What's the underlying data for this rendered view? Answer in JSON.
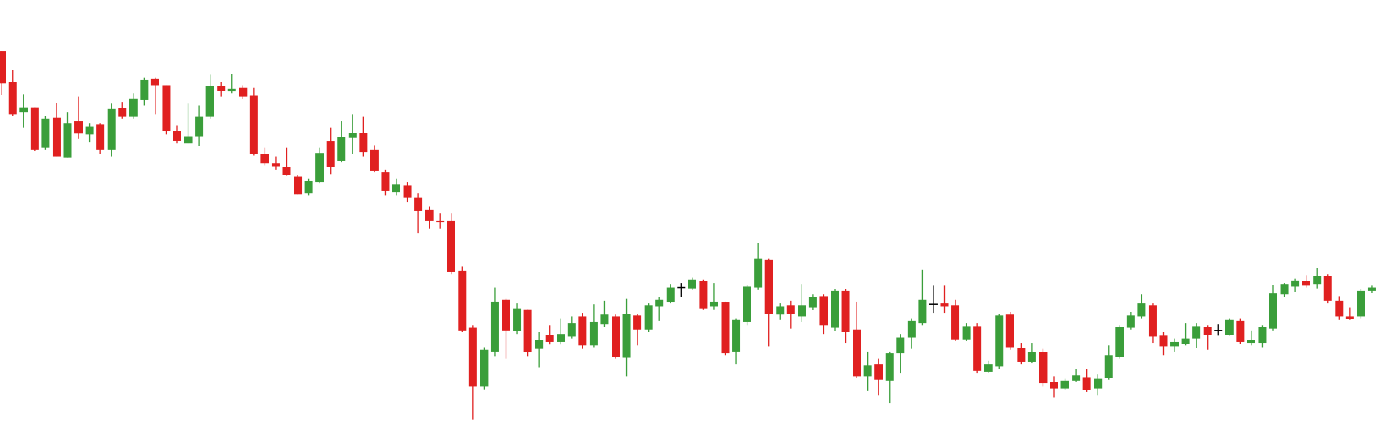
{
  "chart_data": {
    "type": "candlestick",
    "ylim": [
      0,
      504
    ],
    "up_color": "#3a9e3a",
    "down_color": "#e02020",
    "doji_color": "#000000",
    "open": [
      446,
      411,
      376,
      382,
      336,
      370,
      325,
      366,
      351,
      362,
      334,
      381,
      371,
      390,
      414,
      407,
      355,
      341,
      349,
      371,
      406,
      400,
      404,
      395,
      329,
      318,
      314,
      303,
      284,
      297,
      343,
      321,
      347,
      353,
      334,
      308,
      285,
      293,
      279,
      265,
      253,
      253,
      196,
      131,
      64,
      104,
      163,
      127,
      152,
      107,
      123,
      115,
      121,
      144,
      111,
      135,
      144,
      97,
      145,
      129,
      155,
      160,
      177,
      176,
      184,
      155,
      160,
      104,
      138,
      177,
      208,
      146,
      157,
      144,
      154,
      167,
      131,
      173,
      129,
      76,
      90,
      71,
      102,
      120,
      136,
      158,
      159,
      157,
      118,
      133,
      81,
      87,
      146,
      108,
      92,
      103,
      69,
      62,
      71,
      75,
      62,
      74,
      98,
      131,
      144,
      157,
      122,
      110,
      113,
      119,
      132,
      128,
      123,
      139,
      114,
      114,
      130,
      169,
      178,
      184,
      181,
      190,
      162,
      144,
      144,
      173
    ],
    "high": [
      446,
      424,
      397,
      382,
      372,
      387,
      376,
      394,
      364,
      364,
      386,
      388,
      398,
      416,
      416,
      407,
      361,
      386,
      384,
      419,
      411,
      420,
      407,
      404,
      336,
      326,
      336,
      305,
      301,
      336,
      359,
      366,
      374,
      371,
      339,
      311,
      301,
      297,
      284,
      269,
      261,
      261,
      201,
      134,
      109,
      177,
      164,
      159,
      152,
      126,
      134,
      142,
      144,
      148,
      158,
      162,
      146,
      164,
      147,
      159,
      166,
      181,
      182,
      188,
      186,
      182,
      161,
      142,
      180,
      228,
      210,
      159,
      162,
      181,
      169,
      169,
      175,
      175,
      161,
      104,
      96,
      104,
      124,
      142,
      197,
      179,
      179,
      163,
      136,
      136,
      94,
      147,
      149,
      114,
      114,
      107,
      76,
      73,
      84,
      84,
      78,
      111,
      134,
      149,
      169,
      159,
      126,
      119,
      136,
      136,
      134,
      135,
      142,
      142,
      128,
      134,
      180,
      182,
      187,
      191,
      199,
      192,
      167,
      154,
      175,
      179
    ],
    "low": [
      396,
      372,
      359,
      332,
      334,
      326,
      325,
      346,
      342,
      329,
      326,
      369,
      369,
      384,
      374,
      351,
      341,
      341,
      338,
      369,
      394,
      398,
      391,
      327,
      316,
      311,
      304,
      283,
      282,
      296,
      306,
      319,
      329,
      326,
      308,
      282,
      282,
      274,
      239,
      244,
      244,
      192,
      126,
      27,
      61,
      99,
      96,
      124,
      99,
      86,
      112,
      112,
      119,
      107,
      109,
      132,
      96,
      76,
      111,
      126,
      139,
      159,
      166,
      174,
      152,
      152,
      100,
      90,
      134,
      174,
      110,
      140,
      130,
      138,
      151,
      124,
      127,
      114,
      74,
      59,
      54,
      45,
      79,
      107,
      134,
      148,
      148,
      116,
      116,
      79,
      80,
      84,
      106,
      90,
      91,
      64,
      52,
      60,
      70,
      58,
      54,
      72,
      96,
      129,
      142,
      114,
      100,
      104,
      111,
      108,
      106,
      122,
      122,
      113,
      111,
      109,
      128,
      166,
      172,
      177,
      176,
      159,
      140,
      140,
      142,
      171
    ],
    "close": [
      409,
      374,
      382,
      334,
      369,
      326,
      364,
      352,
      360,
      334,
      380,
      371,
      392,
      413,
      407,
      355,
      344,
      349,
      371,
      406,
      401,
      403,
      394,
      329,
      318,
      315,
      305,
      283,
      298,
      330,
      314,
      348,
      353,
      331,
      310,
      287,
      294,
      279,
      264,
      253,
      251,
      195,
      128,
      64,
      106,
      161,
      128,
      153,
      103,
      117,
      115,
      124,
      136,
      111,
      138,
      146,
      98,
      147,
      129,
      157,
      163,
      177,
      177,
      186,
      153,
      161,
      102,
      140,
      178,
      210,
      147,
      155,
      147,
      157,
      166,
      134,
      173,
      126,
      76,
      88,
      72,
      102,
      120,
      139,
      163,
      158,
      155,
      118,
      133,
      82,
      90,
      145,
      109,
      92,
      103,
      68,
      62,
      71,
      77,
      60,
      73,
      100,
      132,
      145,
      159,
      121,
      110,
      115,
      119,
      133,
      123,
      128,
      140,
      115,
      117,
      132,
      170,
      181,
      185,
      179,
      190,
      162,
      144,
      141,
      173,
      177
    ]
  }
}
